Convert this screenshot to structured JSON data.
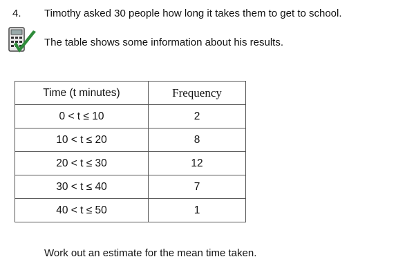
{
  "question": {
    "number": "4.",
    "lines": [
      "Timothy asked 30 people how long it takes them to get to school.",
      "The table shows some information about his results."
    ]
  },
  "table": {
    "header": [
      "Time (t minutes)",
      "Frequency"
    ],
    "rows": [
      [
        "0 < t ≤ 10",
        2
      ],
      [
        "10 < t ≤ 20",
        8
      ],
      [
        "20 < t ≤ 30",
        12
      ],
      [
        "30 < t ≤ 40",
        7
      ],
      [
        "40 < t ≤ 50",
        1
      ]
    ]
  },
  "instruction": "Work out an estimate for the mean time taken."
}
